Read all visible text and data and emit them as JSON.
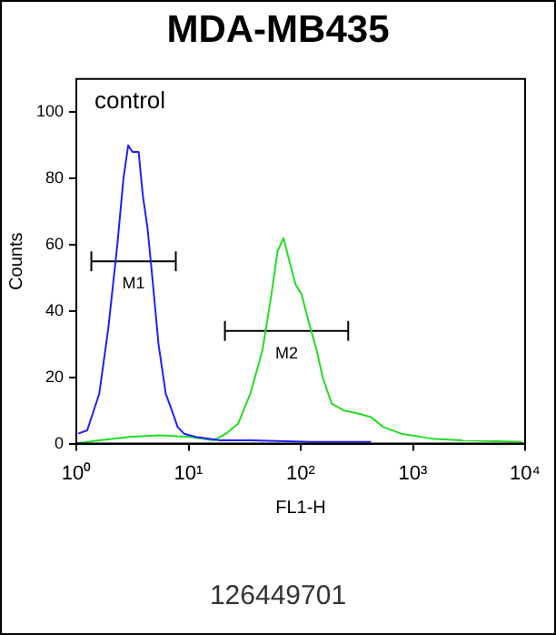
{
  "chart_data": {
    "type": "line",
    "title": "MDA-MB435",
    "xlabel": "FL1-H",
    "ylabel": "Counts",
    "log": "x",
    "grid": false,
    "legend": false,
    "marker": "none",
    "xlim": [
      1,
      10000
    ],
    "xticks": [
      {
        "value": 1,
        "label": "10⁰"
      },
      {
        "value": 10,
        "label": "10¹"
      },
      {
        "value": 100,
        "label": "10²"
      },
      {
        "value": 1000,
        "label": "10³"
      },
      {
        "value": 10000,
        "label": "10⁴"
      }
    ],
    "ylim": [
      0,
      110
    ],
    "yticks": [
      0,
      20,
      40,
      60,
      80,
      100
    ],
    "series": [
      {
        "color": "#1f1fff",
        "x": [
          1.04,
          1.25,
          1.6,
          1.93,
          2.32,
          2.63,
          2.9,
          3.16,
          3.59,
          3.91,
          4.31,
          4.76,
          5.4,
          6.27,
          7.1,
          8.0,
          9.1,
          11.6,
          19.1,
          35.5,
          123,
          424
        ],
        "values": [
          3,
          4,
          15,
          35,
          60,
          80,
          90,
          88,
          88,
          75,
          65,
          50,
          30,
          15,
          10,
          5,
          3,
          2,
          1,
          1,
          0.5,
          0.5
        ]
      },
      {
        "color": "#22dd22",
        "x": [
          1,
          1.6,
          2.98,
          5.53,
          10.3,
          16.9,
          21.6,
          27.7,
          35.5,
          45.5,
          54.8,
          62.1,
          70.3,
          76.6,
          89.9,
          102,
          115,
          139,
          157,
          189,
          243,
          331,
          424,
          543,
          787,
          1466,
          2723,
          9400
        ],
        "values": [
          0,
          1,
          2,
          2.5,
          2,
          1,
          3,
          6,
          15,
          28,
          45,
          58,
          62,
          57,
          48,
          45,
          38,
          28,
          20,
          12,
          10,
          9,
          8,
          5,
          3,
          1.5,
          1,
          0.5
        ]
      },
      {
        "name": "M1",
        "color": "#000000",
        "x": [
          1.36,
          7.7
        ],
        "values": [
          55,
          55
        ],
        "errors": [
          3,
          3
        ]
      },
      {
        "name": "M2",
        "color": "#000000",
        "x": [
          21.1,
          265
        ],
        "values": [
          34,
          34
        ],
        "errors": [
          3,
          3
        ]
      }
    ],
    "annotations": [
      "control",
      "126449701"
    ]
  }
}
